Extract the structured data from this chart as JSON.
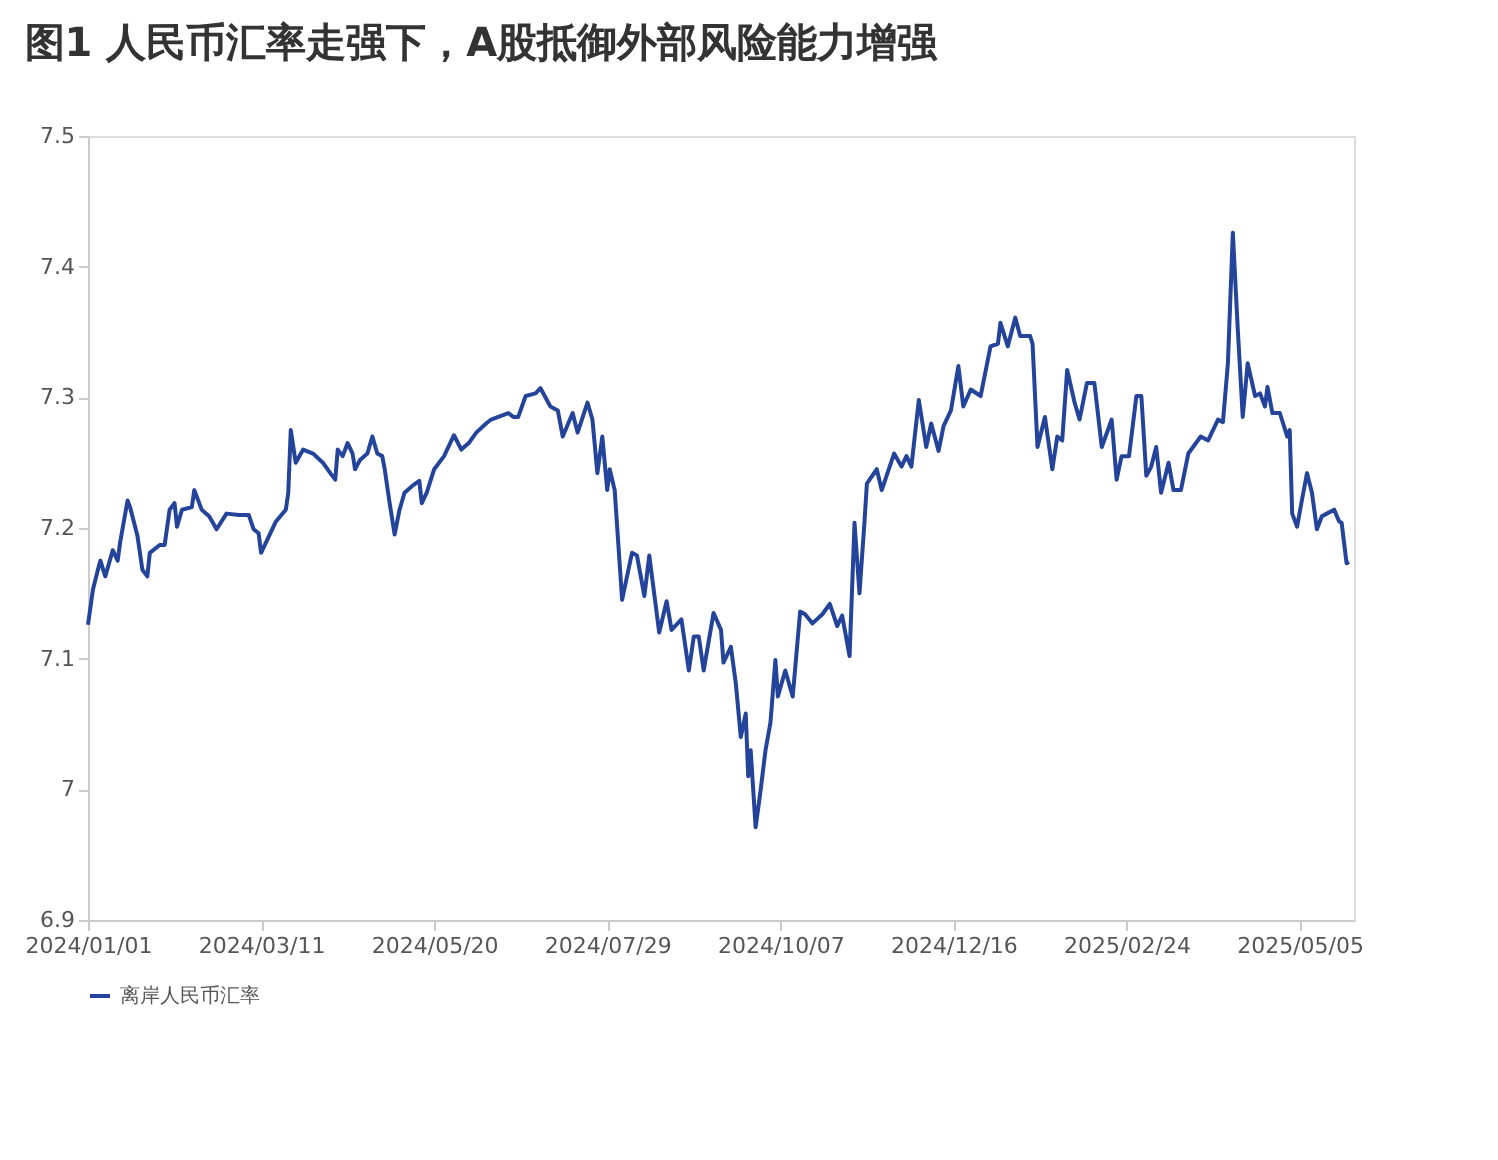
{
  "chart_data": {
    "type": "line",
    "title": "图1  人民币汇率走强下，A股抵御外部风险能力增强",
    "x": [
      "2024-01-01",
      "2024-01-03",
      "2024-01-05",
      "2024-01-06",
      "2024-01-08",
      "2024-01-11",
      "2024-01-13",
      "2024-01-14",
      "2024-01-17",
      "2024-01-18",
      "2024-01-21",
      "2024-01-23",
      "2024-01-25",
      "2024-01-26",
      "2024-01-30",
      "2024-02-01",
      "2024-02-03",
      "2024-02-05",
      "2024-02-06",
      "2024-02-08",
      "2024-02-12",
      "2024-02-13",
      "2024-02-16",
      "2024-02-19",
      "2024-02-22",
      "2024-02-26",
      "2024-03-02",
      "2024-03-06",
      "2024-03-08",
      "2024-03-10",
      "2024-03-11",
      "2024-03-14",
      "2024-03-17",
      "2024-03-21",
      "2024-03-22",
      "2024-03-23",
      "2024-03-25",
      "2024-03-28",
      "2024-04-01",
      "2024-04-05",
      "2024-04-08",
      "2024-04-10",
      "2024-04-11",
      "2024-04-13",
      "2024-04-15",
      "2024-04-17",
      "2024-04-18",
      "2024-04-20",
      "2024-04-23",
      "2024-04-25",
      "2024-04-27",
      "2024-04-29",
      "2024-04-30",
      "2024-05-02",
      "2024-05-04",
      "2024-05-06",
      "2024-05-08",
      "2024-05-11",
      "2024-05-14",
      "2024-05-15",
      "2024-05-17",
      "2024-05-20",
      "2024-05-24",
      "2024-05-28",
      "2024-05-31",
      "2024-06-03",
      "2024-06-06",
      "2024-06-10",
      "2024-06-12",
      "2024-06-19",
      "2024-06-21",
      "2024-06-23",
      "2024-06-26",
      "2024-06-30",
      "2024-07-02",
      "2024-07-06",
      "2024-07-09",
      "2024-07-11",
      "2024-07-15",
      "2024-07-17",
      "2024-07-21",
      "2024-07-23",
      "2024-07-25",
      "2024-07-27",
      "2024-07-29",
      "2024-07-30",
      "2024-08-01",
      "2024-08-04",
      "2024-08-08",
      "2024-08-10",
      "2024-08-13",
      "2024-08-15",
      "2024-08-19",
      "2024-08-22",
      "2024-08-24",
      "2024-08-28",
      "2024-08-31",
      "2024-09-02",
      "2024-09-04",
      "2024-09-06",
      "2024-09-10",
      "2024-09-13",
      "2024-09-14",
      "2024-09-17",
      "2024-09-19",
      "2024-09-21",
      "2024-09-23",
      "2024-09-24",
      "2024-09-25",
      "2024-09-27",
      "2024-09-29",
      "2024-10-01",
      "2024-10-03",
      "2024-10-05",
      "2024-10-06",
      "2024-10-09",
      "2024-10-12",
      "2024-10-15",
      "2024-10-17",
      "2024-10-20",
      "2024-10-24",
      "2024-10-27",
      "2024-10-30",
      "2024-11-01",
      "2024-11-04",
      "2024-11-06",
      "2024-11-08",
      "2024-11-10",
      "2024-11-11",
      "2024-11-15",
      "2024-11-17",
      "2024-11-22",
      "2024-11-25",
      "2024-11-27",
      "2024-11-29",
      "2024-12-02",
      "2024-12-05",
      "2024-12-07",
      "2024-12-10",
      "2024-12-12",
      "2024-12-15",
      "2024-12-18",
      "2024-12-20",
      "2024-12-23",
      "2024-12-27",
      "2024-12-31",
      "2025-01-03",
      "2025-01-04",
      "2025-01-07",
      "2025-01-10",
      "2025-01-12",
      "2025-01-16",
      "2025-01-17",
      "2025-01-19",
      "2025-01-22",
      "2025-01-25",
      "2025-01-27",
      "2025-01-29",
      "2025-01-31",
      "2025-02-03",
      "2025-02-05",
      "2025-02-08",
      "2025-02-11",
      "2025-02-14",
      "2025-02-18",
      "2025-02-20",
      "2025-02-22",
      "2025-02-25",
      "2025-02-28",
      "2025-03-02",
      "2025-03-04",
      "2025-03-06",
      "2025-03-08",
      "2025-03-10",
      "2025-03-13",
      "2025-03-15",
      "2025-03-18",
      "2025-03-21",
      "2025-03-26",
      "2025-03-29",
      "2025-04-02",
      "2025-04-04",
      "2025-04-06",
      "2025-04-08",
      "2025-04-10",
      "2025-04-12",
      "2025-04-14",
      "2025-04-17",
      "2025-04-19",
      "2025-04-21",
      "2025-04-22",
      "2025-04-24",
      "2025-04-27",
      "2025-04-30",
      "2025-05-01",
      "2025-05-02",
      "2025-05-04",
      "2025-05-06",
      "2025-05-08",
      "2025-05-10",
      "2025-05-12",
      "2025-05-14",
      "2025-05-16",
      "2025-05-19",
      "2025-05-21",
      "2025-05-22",
      "2025-05-24",
      "2025-05-25"
    ],
    "series": [
      {
        "name": "离岸人民币汇率",
        "color": "#23449a",
        "values": [
          7.126,
          7.153,
          7.168,
          7.175,
          7.163,
          7.183,
          7.175,
          7.189,
          7.221,
          7.216,
          7.194,
          7.168,
          7.163,
          7.181,
          7.187,
          7.187,
          7.214,
          7.219,
          7.201,
          7.214,
          7.216,
          7.229,
          7.214,
          7.209,
          7.199,
          7.211,
          7.21,
          7.21,
          7.199,
          7.196,
          7.181,
          7.193,
          7.205,
          7.214,
          7.227,
          7.275,
          7.25,
          7.26,
          7.257,
          7.25,
          7.242,
          7.237,
          7.26,
          7.255,
          7.265,
          7.257,
          7.245,
          7.252,
          7.257,
          7.27,
          7.257,
          7.255,
          7.245,
          7.219,
          7.195,
          7.214,
          7.227,
          7.232,
          7.236,
          7.219,
          7.227,
          7.245,
          7.255,
          7.271,
          7.26,
          7.265,
          7.273,
          7.28,
          7.283,
          7.288,
          7.285,
          7.285,
          7.301,
          7.303,
          7.307,
          7.293,
          7.29,
          7.27,
          7.288,
          7.273,
          7.296,
          7.283,
          7.242,
          7.27,
          7.229,
          7.245,
          7.229,
          7.145,
          7.181,
          7.179,
          7.148,
          7.179,
          7.12,
          7.144,
          7.122,
          7.13,
          7.091,
          7.117,
          7.117,
          7.091,
          7.135,
          7.122,
          7.097,
          7.109,
          7.081,
          7.04,
          7.058,
          7.01,
          7.03,
          6.971,
          6.999,
          7.03,
          7.051,
          7.099,
          7.071,
          7.091,
          7.071,
          7.136,
          7.134,
          7.127,
          7.134,
          7.142,
          7.125,
          7.133,
          7.102,
          7.204,
          7.15,
          7.204,
          7.234,
          7.245,
          7.229,
          7.257,
          7.247,
          7.255,
          7.247,
          7.298,
          7.262,
          7.28,
          7.259,
          7.278,
          7.29,
          7.324,
          7.293,
          7.306,
          7.301,
          7.339,
          7.341,
          7.357,
          7.339,
          7.361,
          7.347,
          7.347,
          7.341,
          7.262,
          7.285,
          7.245,
          7.27,
          7.267,
          7.321,
          7.296,
          7.283,
          7.311,
          7.311,
          7.262,
          7.283,
          7.237,
          7.255,
          7.255,
          7.301,
          7.301,
          7.24,
          7.247,
          7.262,
          7.227,
          7.25,
          7.229,
          7.229,
          7.257,
          7.27,
          7.267,
          7.283,
          7.281,
          7.326,
          7.426,
          7.352,
          7.285,
          7.326,
          7.301,
          7.303,
          7.293,
          7.308,
          7.288,
          7.288,
          7.27,
          7.275,
          7.211,
          7.201,
          7.222,
          7.242,
          7.227,
          7.199,
          7.209,
          7.211,
          7.214,
          7.205,
          7.204,
          7.173,
          7.174
        ]
      }
    ],
    "xlim": [
      "2024-01-01",
      "2025-05-27"
    ],
    "xticks": [
      {
        "value": "2024-01-01",
        "label": "2024/01/01"
      },
      {
        "value": "2024-03-11",
        "label": "2024/03/11"
      },
      {
        "value": "2024-05-20",
        "label": "2024/05/20"
      },
      {
        "value": "2024-07-29",
        "label": "2024/07/29"
      },
      {
        "value": "2024-10-07",
        "label": "2024/10/07"
      },
      {
        "value": "2024-12-16",
        "label": "2024/12/16"
      },
      {
        "value": "2025-02-24",
        "label": "2025/02/24"
      },
      {
        "value": "2025-05-05",
        "label": "2025/05/05"
      }
    ],
    "ylim": [
      6.9,
      7.5
    ],
    "yticks": [
      6.9,
      7,
      7.1,
      7.2,
      7.3,
      7.4,
      7.5
    ],
    "grid": false,
    "legend": "bottom",
    "marker": "none",
    "line_style": "solid"
  }
}
